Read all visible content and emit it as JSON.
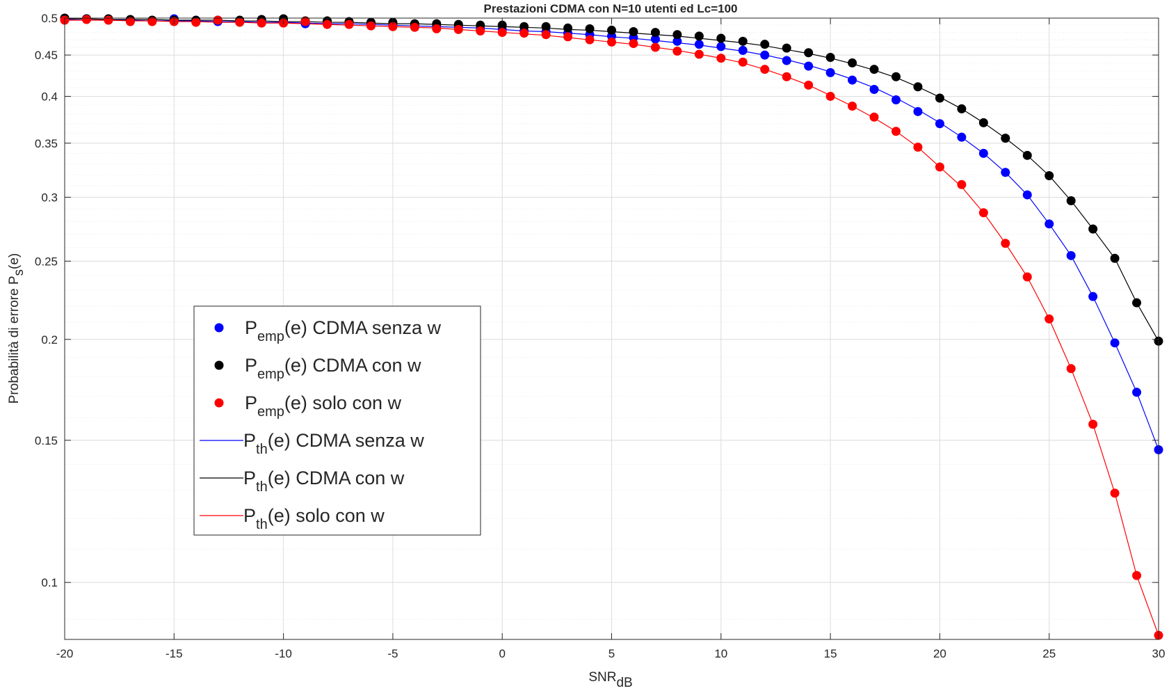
{
  "chart_data": {
    "type": "scatter",
    "title": "Prestazioni CDMA con N=10 utenti ed Lc=100",
    "xlabel": {
      "main": "SNR",
      "sub": "dB"
    },
    "ylabel": {
      "main": "Probabilità di errore P",
      "sub": "s",
      "tail": "(e)"
    },
    "xlim": [
      -20,
      30
    ],
    "ylim": [
      0.085,
      0.5
    ],
    "yscale": "log",
    "grid": true,
    "minor_grid": true,
    "legend_position": "center-left",
    "xticks": [
      -20,
      -15,
      -10,
      -5,
      0,
      5,
      10,
      15,
      20,
      25,
      30
    ],
    "xtick_labels": [
      "-20",
      "-15",
      "-10",
      "-5",
      "0",
      "5",
      "10",
      "15",
      "20",
      "25",
      "30"
    ],
    "yticks": [
      0.1,
      0.15,
      0.2,
      0.25,
      0.3,
      0.35,
      0.4,
      0.45,
      0.5
    ],
    "ytick_labels": [
      "0.1",
      "0.15",
      "0.2",
      "0.25",
      "0.3",
      "0.35",
      "0.4",
      "0.45",
      "0.5"
    ],
    "x": [
      -20,
      -19,
      -18,
      -17,
      -16,
      -15,
      -14,
      -13,
      -12,
      -11,
      -10,
      -9,
      -8,
      -7,
      -6,
      -5,
      -4,
      -3,
      -2,
      -1,
      0,
      1,
      2,
      3,
      4,
      5,
      6,
      7,
      8,
      9,
      10,
      11,
      12,
      13,
      14,
      15,
      16,
      17,
      18,
      19,
      20,
      21,
      22,
      23,
      24,
      25,
      26,
      27,
      28,
      29,
      30
    ],
    "series": [
      {
        "name": {
          "main": "P",
          "sub": "emp",
          "tail": "(e) CDMA senza w"
        },
        "kind": "markers",
        "color": "#0000ff",
        "values": [
          0.499,
          0.499,
          0.498,
          0.497,
          0.496,
          0.499,
          0.495,
          0.495,
          0.496,
          0.496,
          0.497,
          0.492,
          0.493,
          0.492,
          0.491,
          0.49,
          0.489,
          0.488,
          0.487,
          0.485,
          0.484,
          0.482,
          0.481,
          0.479,
          0.477,
          0.475,
          0.473,
          0.471,
          0.468,
          0.464,
          0.461,
          0.456,
          0.45,
          0.443,
          0.436,
          0.428,
          0.419,
          0.408,
          0.396,
          0.383,
          0.37,
          0.356,
          0.34,
          0.322,
          0.302,
          0.278,
          0.254,
          0.226,
          0.198,
          0.172,
          0.146
        ]
      },
      {
        "name": {
          "main": "P",
          "sub": "emp",
          "tail": "(e) CDMA con w"
        },
        "kind": "markers",
        "color": "#000000",
        "values": [
          0.5,
          0.499,
          0.499,
          0.498,
          0.497,
          0.497,
          0.497,
          0.497,
          0.497,
          0.498,
          0.499,
          0.496,
          0.496,
          0.495,
          0.494,
          0.494,
          0.492,
          0.492,
          0.491,
          0.49,
          0.49,
          0.488,
          0.488,
          0.486,
          0.485,
          0.483,
          0.481,
          0.48,
          0.477,
          0.475,
          0.472,
          0.468,
          0.464,
          0.459,
          0.453,
          0.447,
          0.44,
          0.432,
          0.423,
          0.411,
          0.398,
          0.386,
          0.371,
          0.355,
          0.338,
          0.319,
          0.297,
          0.274,
          0.252,
          0.222,
          0.199
        ]
      },
      {
        "name": {
          "main": "P",
          "sub": "emp",
          "tail": "(e) solo con w"
        },
        "kind": "markers",
        "color": "#ff0000",
        "values": [
          0.497,
          0.498,
          0.497,
          0.495,
          0.495,
          0.495,
          0.494,
          0.497,
          0.494,
          0.493,
          0.493,
          0.495,
          0.491,
          0.491,
          0.489,
          0.488,
          0.487,
          0.485,
          0.484,
          0.482,
          0.48,
          0.479,
          0.477,
          0.474,
          0.47,
          0.467,
          0.465,
          0.46,
          0.455,
          0.451,
          0.446,
          0.441,
          0.432,
          0.423,
          0.413,
          0.4,
          0.389,
          0.377,
          0.362,
          0.346,
          0.327,
          0.311,
          0.287,
          0.263,
          0.239,
          0.212,
          0.184,
          0.157,
          0.129,
          0.102,
          0.086
        ]
      },
      {
        "name": {
          "main": "P",
          "sub": "th",
          "tail": "(e) CDMA senza w"
        },
        "kind": "line",
        "color": "#0000ff",
        "values": [
          0.498,
          0.497,
          0.497,
          0.497,
          0.496,
          0.496,
          0.496,
          0.495,
          0.495,
          0.494,
          0.494,
          0.493,
          0.492,
          0.492,
          0.491,
          0.49,
          0.489,
          0.488,
          0.487,
          0.486,
          0.484,
          0.482,
          0.481,
          0.479,
          0.477,
          0.474,
          0.472,
          0.469,
          0.466,
          0.463,
          0.459,
          0.455,
          0.45,
          0.444,
          0.437,
          0.429,
          0.42,
          0.41,
          0.398,
          0.385,
          0.371,
          0.356,
          0.34,
          0.322,
          0.302,
          0.278,
          0.254,
          0.226,
          0.198,
          0.172,
          0.146
        ]
      },
      {
        "name": {
          "main": "P",
          "sub": "th",
          "tail": "(e) CDMA con w"
        },
        "kind": "line",
        "color": "#000000",
        "values": [
          0.499,
          0.499,
          0.498,
          0.498,
          0.498,
          0.497,
          0.497,
          0.497,
          0.496,
          0.496,
          0.495,
          0.495,
          0.494,
          0.494,
          0.493,
          0.492,
          0.492,
          0.491,
          0.49,
          0.489,
          0.488,
          0.487,
          0.486,
          0.484,
          0.483,
          0.481,
          0.479,
          0.477,
          0.475,
          0.472,
          0.469,
          0.466,
          0.462,
          0.457,
          0.452,
          0.446,
          0.439,
          0.431,
          0.422,
          0.411,
          0.399,
          0.386,
          0.371,
          0.355,
          0.338,
          0.319,
          0.297,
          0.274,
          0.252,
          0.222,
          0.199
        ]
      },
      {
        "name": {
          "main": "P",
          "sub": "th",
          "tail": "(e) solo con w"
        },
        "kind": "line",
        "color": "#ff0000",
        "values": [
          0.497,
          0.497,
          0.497,
          0.496,
          0.496,
          0.495,
          0.495,
          0.494,
          0.494,
          0.493,
          0.493,
          0.492,
          0.491,
          0.49,
          0.489,
          0.488,
          0.487,
          0.486,
          0.484,
          0.482,
          0.48,
          0.478,
          0.476,
          0.473,
          0.47,
          0.467,
          0.464,
          0.46,
          0.456,
          0.451,
          0.446,
          0.44,
          0.432,
          0.423,
          0.413,
          0.401,
          0.389,
          0.376,
          0.362,
          0.346,
          0.327,
          0.309,
          0.287,
          0.263,
          0.239,
          0.212,
          0.184,
          0.157,
          0.129,
          0.102,
          0.086
        ]
      }
    ]
  }
}
